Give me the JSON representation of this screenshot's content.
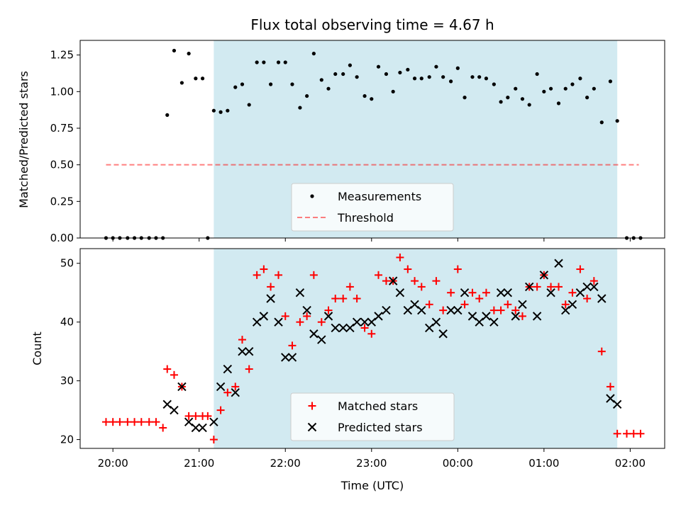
{
  "chart_data": {
    "title": "Flux total observing time = 4.67 h",
    "xlabel": "Time (UTC)",
    "x_ticks": [
      "20:00",
      "21:00",
      "22:00",
      "23:00",
      "00:00",
      "01:00",
      "02:00"
    ],
    "x_tick_hours": [
      0,
      1,
      2,
      3,
      4,
      5,
      6
    ],
    "x_origin_note": "20:00 UTC",
    "xlim_hours": [
      -0.38,
      6.4
    ],
    "shaded_span_hours": [
      1.17,
      5.85
    ],
    "colors": {
      "span": "#add8e6",
      "measurements": "#000000",
      "threshold": "#ff0000",
      "matched": "#ff0000",
      "predicted": "#000000"
    },
    "panels": [
      {
        "type": "scatter",
        "ylabel": "Matched/Predicted stars",
        "ylim": [
          0,
          1.35
        ],
        "y_ticks": [
          0.0,
          0.25,
          0.5,
          0.75,
          1.0,
          1.25
        ],
        "y_tick_labels": [
          "0.00",
          "0.25",
          "0.50",
          "0.75",
          "1.00",
          "1.25"
        ],
        "legend_position": "lower center",
        "series": [
          {
            "name": "Measurements",
            "marker": "dot",
            "x": [
              -0.08,
              0.0,
              0.08,
              0.17,
              0.25,
              0.33,
              0.42,
              0.5,
              0.58,
              0.63,
              0.71,
              0.8,
              0.88,
              0.96,
              1.04,
              1.1,
              1.17,
              1.25,
              1.33,
              1.42,
              1.5,
              1.58,
              1.67,
              1.75,
              1.83,
              1.92,
              2.0,
              2.08,
              2.17,
              2.25,
              2.33,
              2.42,
              2.5,
              2.58,
              2.67,
              2.75,
              2.83,
              2.92,
              3.0,
              3.08,
              3.17,
              3.25,
              3.33,
              3.42,
              3.5,
              3.58,
              3.67,
              3.75,
              3.83,
              3.92,
              4.0,
              4.08,
              4.17,
              4.25,
              4.33,
              4.42,
              4.5,
              4.58,
              4.67,
              4.75,
              4.83,
              4.92,
              5.0,
              5.08,
              5.17,
              5.25,
              5.33,
              5.42,
              5.5,
              5.58,
              5.67,
              5.77,
              5.85,
              5.96,
              6.04,
              6.12
            ],
            "y": [
              0.0,
              0.0,
              0.0,
              0.0,
              0.0,
              0.0,
              0.0,
              0.0,
              0.0,
              0.84,
              1.28,
              1.06,
              1.26,
              1.09,
              1.09,
              0.0,
              0.87,
              0.86,
              0.87,
              1.03,
              1.05,
              0.91,
              1.2,
              1.2,
              1.05,
              1.2,
              1.2,
              1.05,
              0.89,
              0.97,
              1.26,
              1.08,
              1.02,
              1.12,
              1.12,
              1.18,
              1.1,
              0.97,
              0.95,
              1.17,
              1.12,
              1.0,
              1.13,
              1.15,
              1.09,
              1.09,
              1.1,
              1.17,
              1.1,
              1.07,
              1.16,
              0.96,
              1.1,
              1.1,
              1.09,
              1.05,
              0.93,
              0.96,
              1.02,
              0.95,
              0.91,
              1.12,
              1.0,
              1.02,
              0.92,
              1.02,
              1.05,
              1.09,
              0.96,
              1.02,
              0.79,
              1.07,
              0.8,
              0.0,
              0.0,
              0.0
            ]
          },
          {
            "name": "Threshold",
            "marker": "dashed-line",
            "x": [
              -0.08,
              6.1
            ],
            "y": [
              0.5,
              0.5
            ]
          }
        ]
      },
      {
        "type": "scatter",
        "ylabel": "Count",
        "ylim": [
          18.5,
          52.5
        ],
        "y_ticks": [
          20,
          30,
          40,
          50
        ],
        "y_tick_labels": [
          "20",
          "30",
          "40",
          "50"
        ],
        "legend_position": "lower center",
        "series": [
          {
            "name": "Matched stars",
            "marker": "plus",
            "x": [
              -0.08,
              0.0,
              0.08,
              0.17,
              0.25,
              0.33,
              0.42,
              0.5,
              0.58,
              0.63,
              0.71,
              0.8,
              0.88,
              0.96,
              1.04,
              1.1,
              1.17,
              1.25,
              1.33,
              1.42,
              1.5,
              1.58,
              1.67,
              1.75,
              1.83,
              1.92,
              2.0,
              2.08,
              2.17,
              2.25,
              2.33,
              2.42,
              2.5,
              2.58,
              2.67,
              2.75,
              2.83,
              2.92,
              3.0,
              3.08,
              3.17,
              3.25,
              3.33,
              3.42,
              3.5,
              3.58,
              3.67,
              3.75,
              3.83,
              3.92,
              4.0,
              4.08,
              4.17,
              4.25,
              4.33,
              4.42,
              4.5,
              4.58,
              4.67,
              4.75,
              4.83,
              4.92,
              5.0,
              5.08,
              5.17,
              5.25,
              5.33,
              5.42,
              5.5,
              5.58,
              5.67,
              5.77,
              5.85,
              5.96,
              6.04,
              6.12
            ],
            "y": [
              23,
              23,
              23,
              23,
              23,
              23,
              23,
              23,
              22,
              32,
              31,
              29,
              24,
              24,
              24,
              24,
              20,
              25,
              28,
              29,
              37,
              32,
              48,
              49,
              46,
              48,
              41,
              36,
              40,
              41,
              48,
              40,
              42,
              44,
              44,
              46,
              44,
              39,
              38,
              48,
              47,
              47,
              51,
              49,
              47,
              46,
              43,
              47,
              42,
              45,
              49,
              43,
              45,
              44,
              45,
              42,
              42,
              43,
              42,
              41,
              46,
              46,
              48,
              46,
              46,
              43,
              45,
              49,
              44,
              47,
              35,
              29,
              21,
              21,
              21,
              21
            ]
          },
          {
            "name": "Predicted stars",
            "marker": "x",
            "x": [
              0.63,
              0.71,
              0.8,
              0.88,
              0.96,
              1.04,
              1.17,
              1.25,
              1.33,
              1.42,
              1.5,
              1.58,
              1.67,
              1.75,
              1.83,
              1.92,
              2.0,
              2.08,
              2.17,
              2.25,
              2.33,
              2.42,
              2.5,
              2.58,
              2.67,
              2.75,
              2.83,
              2.92,
              3.0,
              3.08,
              3.17,
              3.25,
              3.33,
              3.42,
              3.5,
              3.58,
              3.67,
              3.75,
              3.83,
              3.92,
              4.0,
              4.08,
              4.17,
              4.25,
              4.33,
              4.42,
              4.5,
              4.58,
              4.67,
              4.75,
              4.83,
              4.92,
              5.0,
              5.08,
              5.17,
              5.25,
              5.33,
              5.42,
              5.5,
              5.58,
              5.67,
              5.77,
              5.85
            ],
            "y": [
              26,
              25,
              29,
              23,
              22,
              22,
              23,
              29,
              32,
              28,
              35,
              35,
              40,
              41,
              44,
              40,
              34,
              34,
              45,
              42,
              38,
              37,
              41,
              39,
              39,
              39,
              40,
              40,
              40,
              41,
              42,
              47,
              45,
              42,
              43,
              42,
              39,
              40,
              38,
              42,
              42,
              45,
              41,
              40,
              41,
              40,
              45,
              45,
              41,
              43,
              46,
              41,
              48,
              45,
              50,
              42,
              43,
              45,
              46,
              46,
              44,
              27,
              26
            ]
          }
        ]
      }
    ]
  }
}
